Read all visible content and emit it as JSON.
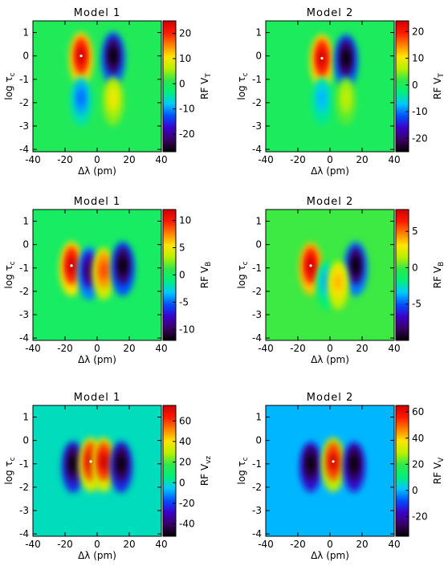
{
  "colors": {
    "colormap": [
      "#000000",
      "#3a0063",
      "#3a00c8",
      "#0050ff",
      "#00c8ff",
      "#00f07a",
      "#2ee84b",
      "#b8f000",
      "#ffe600",
      "#ff8000",
      "#ff1a00",
      "#d00000"
    ],
    "background_field": "#2fe64c"
  },
  "chart_data": [
    {
      "type": "heatmap",
      "title": "Model 1",
      "xlabel": "Δλ (pm)",
      "ylabel": "log τ",
      "ylabel_sub": "c",
      "xlim": [
        -40,
        40
      ],
      "ylim": [
        -4.1,
        1.5
      ],
      "xticks": [
        "-40",
        "-20",
        "0",
        "20",
        "40"
      ],
      "yticks": [
        "1",
        "0",
        "-1",
        "-2",
        "-3",
        "-4"
      ],
      "colorbar": {
        "label": "RF V",
        "label_sub": "T",
        "range": [
          -27,
          25
        ],
        "ticks": [
          "20",
          "10",
          "0",
          "-10",
          "-20"
        ]
      },
      "features": [
        {
          "x": -10,
          "y": 0.0,
          "value": 25
        },
        {
          "x": 10,
          "y": 0.0,
          "value": -27
        },
        {
          "x": -10,
          "y": -1.8,
          "value": -12
        },
        {
          "x": 10,
          "y": -1.8,
          "value": 10
        }
      ]
    },
    {
      "type": "heatmap",
      "title": "Model 2",
      "xlabel": "Δλ (pm)",
      "ylabel": "log τ",
      "ylabel_sub": "c",
      "xlim": [
        -40,
        40
      ],
      "ylim": [
        -4.1,
        1.5
      ],
      "xticks": [
        "-40",
        "-20",
        "0",
        "20",
        "40"
      ],
      "yticks": [
        "1",
        "0",
        "-1",
        "-2",
        "-3",
        "-4"
      ],
      "colorbar": {
        "label": "RF V",
        "label_sub": "T",
        "range": [
          -25,
          24
        ],
        "ticks": [
          "20",
          "10",
          "0",
          "-10",
          "-20"
        ]
      },
      "features": [
        {
          "x": -5,
          "y": -0.1,
          "value": 24
        },
        {
          "x": 10,
          "y": -0.1,
          "value": -25
        },
        {
          "x": -5,
          "y": -1.8,
          "value": -8
        },
        {
          "x": 10,
          "y": -1.8,
          "value": 7
        }
      ]
    },
    {
      "type": "heatmap",
      "title": "Model 1",
      "xlabel": "Δλ (pm)",
      "ylabel": "log τ",
      "ylabel_sub": "c",
      "xlim": [
        -40,
        40
      ],
      "ylim": [
        -4.1,
        1.5
      ],
      "xticks": [
        "-40",
        "-20",
        "0",
        "20",
        "40"
      ],
      "yticks": [
        "1",
        "0",
        "-1",
        "-2",
        "-3",
        "-4"
      ],
      "colorbar": {
        "label": "RF V",
        "label_sub": "B",
        "range": [
          -12,
          12
        ],
        "ticks": [
          "10",
          "5",
          "0",
          "-5",
          "-10"
        ]
      },
      "features": [
        {
          "x": -16,
          "y": -0.9,
          "value": 12
        },
        {
          "x": -5,
          "y": -1.1,
          "value": -10
        },
        {
          "x": 4,
          "y": -1.1,
          "value": 9
        },
        {
          "x": 16,
          "y": -0.9,
          "value": -12
        }
      ]
    },
    {
      "type": "heatmap",
      "title": "Model 2",
      "xlabel": "Δλ (pm)",
      "ylabel": "log τ",
      "ylabel_sub": "c",
      "xlim": [
        -40,
        40
      ],
      "ylim": [
        -4.1,
        1.5
      ],
      "xticks": [
        "-40",
        "-20",
        "0",
        "20",
        "40"
      ],
      "yticks": [
        "1",
        "0",
        "-1",
        "-2",
        "-3",
        "-4"
      ],
      "colorbar": {
        "label": "RF V",
        "label_sub": "B",
        "range": [
          -10,
          8
        ],
        "ticks": [
          "5",
          "0",
          "-5"
        ]
      },
      "features": [
        {
          "x": -12,
          "y": -0.9,
          "value": 8
        },
        {
          "x": 16,
          "y": -0.9,
          "value": -10
        },
        {
          "x": -2,
          "y": -1.6,
          "value": -4
        },
        {
          "x": 5,
          "y": -1.6,
          "value": 4
        }
      ]
    },
    {
      "type": "heatmap",
      "title": "Model 1",
      "xlabel": "Δλ (pm)",
      "ylabel": "log τ",
      "ylabel_sub": "c",
      "xlim": [
        -40,
        40
      ],
      "ylim": [
        -4.1,
        1.5
      ],
      "xticks": [
        "-40",
        "-20",
        "0",
        "20",
        "40"
      ],
      "yticks": [
        "1",
        "0",
        "-1",
        "-2",
        "-3",
        "-4"
      ],
      "colorbar": {
        "label": "RF V",
        "label_sub": "vz",
        "range": [
          -52,
          75
        ],
        "ticks": [
          "60",
          "40",
          "20",
          "0",
          "-20",
          "-40"
        ]
      },
      "features": [
        {
          "x": -15,
          "y": -1.0,
          "value": -52
        },
        {
          "x": -4,
          "y": -0.9,
          "value": 75
        },
        {
          "x": 4,
          "y": -0.9,
          "value": 75
        },
        {
          "x": 15,
          "y": -1.0,
          "value": -52
        }
      ]
    },
    {
      "type": "heatmap",
      "title": "Model 2",
      "xlabel": "Δλ (pm)",
      "ylabel": "log τ",
      "ylabel_sub": "c",
      "xlim": [
        -40,
        40
      ],
      "ylim": [
        -4.1,
        1.5
      ],
      "xticks": [
        "-40",
        "-20",
        "0",
        "20",
        "40"
      ],
      "yticks": [
        "1",
        "0",
        "-1",
        "-2",
        "-3",
        "-4"
      ],
      "colorbar": {
        "label": "RF V",
        "label_sub": "V",
        "range": [
          -35,
          65
        ],
        "ticks": [
          "60",
          "40",
          "20",
          "0",
          "-20"
        ]
      },
      "features": [
        {
          "x": -12,
          "y": -1.0,
          "value": -35
        },
        {
          "x": 2,
          "y": -0.9,
          "value": 65
        },
        {
          "x": 15,
          "y": -1.0,
          "value": -35
        }
      ]
    }
  ]
}
